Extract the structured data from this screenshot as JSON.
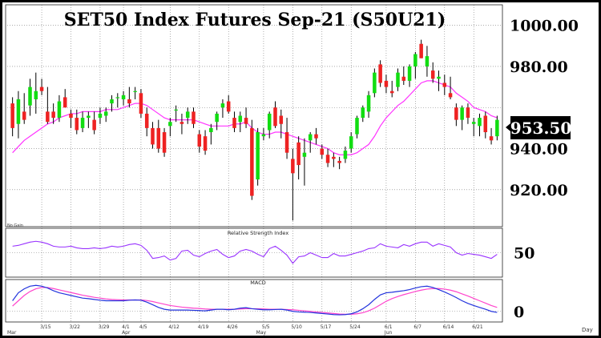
{
  "title": "SET50  Index  Futures  Sep-21  (S50U21)",
  "last_price": "953.50",
  "watermark": "No Gain",
  "rsi_title": "Relative Strength Index",
  "macd_title": "MACD",
  "day_label": "Day",
  "colors": {
    "up": "#11dd11",
    "down": "#ee2222",
    "ma": "#ff33ff",
    "rsi": "#9933ff",
    "macd": "#2233dd",
    "signal": "#ff44cc",
    "grid": "#7a7a7a"
  },
  "chart_data": [
    {
      "type": "candlestick",
      "title": "SET50  Index  Futures  Sep-21  (S50U21)",
      "ylim": [
        902,
        1010
      ],
      "y_ticks": [
        920,
        940,
        960,
        980,
        1000
      ],
      "y_tick_labels": [
        "920.00",
        "940.00",
        "",
        "980.00",
        "1000.00"
      ],
      "x_tick_labels": [
        "3/15",
        "3/22",
        "3/29",
        "4/1",
        "4/5",
        "4/12",
        "4/19",
        "4/26",
        "5/5",
        "5/10",
        "5/17",
        "5/24",
        "6/1",
        "6/7",
        "6/14",
        "6/21"
      ],
      "month_labels": [
        "Mar",
        "Apr",
        "May",
        "Jun"
      ],
      "series": [
        {
          "type": "ohlc",
          "values": [
            [
              962,
              965,
              946,
              950
            ],
            [
              952,
              968,
              945,
              964
            ],
            [
              958,
              967,
              952,
              954
            ],
            [
              961,
              974,
              956,
              970
            ],
            [
              964,
              977,
              957,
              968
            ],
            [
              970,
              974,
              966,
              968
            ],
            [
              958,
              970,
              952,
              953
            ],
            [
              958,
              962,
              952,
              955
            ],
            [
              955,
              966,
              953,
              963
            ],
            [
              965,
              969,
              960,
              960
            ],
            [
              957,
              959,
              950,
              955
            ],
            [
              955,
              959,
              947,
              949
            ],
            [
              950,
              958,
              948,
              955
            ],
            [
              955,
              958,
              950,
              956
            ],
            [
              954,
              958,
              947,
              949
            ],
            [
              955,
              960,
              952,
              957
            ],
            [
              956,
              960,
              953,
              958
            ],
            [
              962,
              966,
              958,
              964
            ],
            [
              965,
              967,
              960,
              965
            ],
            [
              964,
              968,
              961,
              966
            ],
            [
              964,
              970,
              960,
              962
            ],
            [
              968,
              970,
              964,
              968
            ],
            [
              967,
              969,
              955,
              957
            ],
            [
              957,
              960,
              946,
              950
            ],
            [
              950,
              953,
              940,
              942
            ],
            [
              950,
              954,
              938,
              940
            ],
            [
              948,
              950,
              936,
              938
            ],
            [
              951,
              955,
              946,
              953
            ],
            [
              959,
              961,
              953,
              959
            ],
            [
              953,
              957,
              947,
              952
            ],
            [
              955,
              960,
              952,
              958
            ],
            [
              958,
              960,
              950,
              952
            ],
            [
              947,
              949,
              938,
              941
            ],
            [
              946,
              949,
              937,
              939
            ],
            [
              948,
              952,
              942,
              950
            ],
            [
              953,
              958,
              949,
              957
            ],
            [
              960,
              964,
              955,
              962
            ],
            [
              963,
              966,
              957,
              958
            ],
            [
              955,
              958,
              948,
              950
            ],
            [
              953,
              958,
              948,
              956
            ],
            [
              955,
              960,
              950,
              952
            ],
            [
              950,
              954,
              915,
              917
            ],
            [
              925,
              950,
              922,
              948
            ],
            [
              946,
              950,
              944,
              947
            ],
            [
              949,
              958,
              945,
              957
            ],
            [
              960,
              963,
              950,
              951
            ],
            [
              956,
              959,
              945,
              952
            ],
            [
              948,
              955,
              935,
              938
            ],
            [
              935,
              940,
              905,
              928
            ],
            [
              943,
              946,
              925,
              932
            ],
            [
              936,
              945,
              922,
              938
            ],
            [
              944,
              948,
              938,
              947
            ],
            [
              947,
              950,
              942,
              945
            ],
            [
              940,
              942,
              935,
              937
            ],
            [
              937,
              940,
              931,
              933
            ],
            [
              936,
              938,
              931,
              935
            ],
            [
              934,
              936,
              930,
              933
            ],
            [
              935,
              941,
              933,
              939
            ],
            [
              940,
              948,
              938,
              946
            ],
            [
              947,
              956,
              945,
              955
            ],
            [
              955,
              961,
              953,
              960
            ],
            [
              958,
              968,
              955,
              966
            ],
            [
              967,
              979,
              965,
              977
            ],
            [
              981,
              983,
              970,
              972
            ],
            [
              973,
              976,
              967,
              970
            ],
            [
              968,
              973,
              965,
              967
            ],
            [
              970,
              979,
              968,
              977
            ],
            [
              975,
              980,
              971,
              973
            ],
            [
              973,
              981,
              970,
              980
            ],
            [
              980,
              987,
              974,
              986
            ],
            [
              991,
              993,
              984,
              984
            ],
            [
              980,
              990,
              975,
              985
            ],
            [
              978,
              982,
              972,
              974
            ],
            [
              974,
              978,
              968,
              975
            ],
            [
              972,
              976,
              966,
              970
            ],
            [
              967,
              975,
              964,
              965
            ],
            [
              960,
              962,
              951,
              954
            ],
            [
              954,
              961,
              949,
              960
            ],
            [
              960,
              962,
              952,
              955
            ],
            [
              952,
              955,
              946,
              953
            ],
            [
              951,
              957,
              946,
              955
            ],
            [
              956,
              958,
              945,
              948
            ],
            [
              946,
              950,
              942,
              944
            ],
            [
              946,
              956,
              944,
              954
            ]
          ]
        },
        {
          "name": "",
          "type": "line",
          "values": [
            938,
            941,
            944,
            946,
            948,
            950,
            952,
            953,
            955,
            956,
            957,
            957,
            958,
            958,
            958,
            958,
            959,
            959,
            959,
            960,
            961,
            962,
            962,
            961,
            959,
            957,
            955,
            954,
            954,
            954,
            954,
            954,
            953,
            952,
            951,
            951,
            951,
            951,
            952,
            952,
            953,
            950,
            948,
            947,
            947,
            948,
            948,
            947,
            946,
            945,
            944,
            943,
            942,
            941,
            940,
            938,
            937,
            937,
            937,
            938,
            940,
            942,
            946,
            951,
            955,
            958,
            961,
            963,
            966,
            969,
            972,
            973,
            973,
            972,
            971,
            970,
            967,
            965,
            963,
            960,
            959,
            958,
            956,
            955
          ]
        }
      ]
    },
    {
      "type": "line",
      "title": "Relative Strength Index",
      "y_tick_labels": [
        "50"
      ],
      "ylim": [
        20,
        80
      ],
      "series": [
        {
          "name": "",
          "values": [
            58,
            59,
            61,
            63,
            64,
            63,
            61,
            58,
            57,
            57,
            58,
            56,
            55,
            55,
            56,
            55,
            56,
            58,
            57,
            58,
            60,
            61,
            59,
            53,
            43,
            44,
            46,
            41,
            43,
            52,
            53,
            47,
            45,
            49,
            52,
            54,
            48,
            44,
            46,
            52,
            54,
            52,
            48,
            45,
            55,
            58,
            53,
            47,
            37,
            45,
            46,
            50,
            47,
            44,
            44,
            49,
            46,
            46,
            48,
            50,
            52,
            55,
            56,
            61,
            58,
            57,
            56,
            60,
            58,
            61,
            63,
            63,
            58,
            61,
            59,
            57,
            50,
            47,
            49,
            48,
            47,
            45,
            43,
            48
          ]
        }
      ]
    },
    {
      "type": "line",
      "title": "MACD",
      "y_tick_labels": [
        "0"
      ],
      "ylim": [
        -4,
        12
      ],
      "series": [
        {
          "name": "",
          "values": [
            4,
            7,
            8.5,
            9.5,
            9.8,
            9.5,
            8.8,
            7.8,
            7,
            6.5,
            6,
            5.5,
            5,
            4.8,
            4.5,
            4.2,
            4,
            4,
            4,
            4,
            4.2,
            4.3,
            4.2,
            3.5,
            2.5,
            1.5,
            0.8,
            0.5,
            0.5,
            0.5,
            0.5,
            0.4,
            0.3,
            0.2,
            0.5,
            0.8,
            0.8,
            0.6,
            0.8,
            1.2,
            1.4,
            1,
            0.8,
            0.6,
            0.6,
            0.7,
            0.8,
            0.5,
            0,
            -0.2,
            -0.3,
            -0.4,
            -0.6,
            -0.8,
            -1,
            -1.2,
            -1.3,
            -1.2,
            -0.9,
            -0.2,
            1,
            2.5,
            4.5,
            6.2,
            7,
            7.2,
            7.5,
            7.8,
            8.2,
            8.8,
            9.3,
            9.5,
            9,
            8.2,
            7.3,
            6.3,
            5.2,
            4,
            3,
            2.2,
            1.5,
            0.8,
            0,
            -0.4
          ]
        },
        {
          "name": "",
          "values": [
            2,
            4,
            6,
            7.5,
            8.5,
            9,
            9,
            8.6,
            8.1,
            7.6,
            7.1,
            6.6,
            6.1,
            5.7,
            5.3,
            5,
            4.7,
            4.5,
            4.4,
            4.3,
            4.3,
            4.3,
            4.3,
            4.1,
            3.7,
            3.2,
            2.7,
            2.2,
            1.9,
            1.6,
            1.4,
            1.2,
            1.1,
            0.9,
            0.8,
            0.8,
            0.8,
            0.8,
            0.8,
            0.9,
            1,
            1,
            1,
            0.9,
            0.8,
            0.8,
            0.8,
            0.7,
            0.6,
            0.4,
            0.2,
            0,
            -0.2,
            -0.4,
            -0.6,
            -0.8,
            -1,
            -1.1,
            -1.1,
            -0.9,
            -0.5,
            0.2,
            1.2,
            2.5,
            3.8,
            4.8,
            5.6,
            6.3,
            6.9,
            7.5,
            8,
            8.4,
            8.6,
            8.6,
            8.4,
            8,
            7.4,
            6.6,
            5.8,
            4.9,
            4,
            3.1,
            2.2,
            1.5
          ]
        }
      ]
    }
  ]
}
